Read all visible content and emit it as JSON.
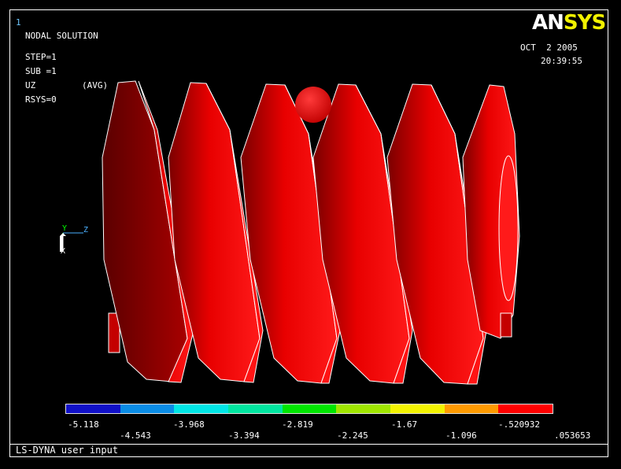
{
  "window_number": "1",
  "header": {
    "title": "NODAL SOLUTION",
    "step": "STEP=1",
    "sub": "SUB =1",
    "variable": "UZ",
    "avg": "(AVG)",
    "rsys": "RSYS=0"
  },
  "logo": {
    "an": "AN",
    "sys": "SYS"
  },
  "datetime": {
    "date": "OCT  2 2005",
    "time": "20:39:55"
  },
  "triad": {
    "y": "Y",
    "z": "Z",
    "x": "X"
  },
  "legend": {
    "colors": [
      "#1010c8",
      "#0a8ce6",
      "#00e6e6",
      "#00e6a0",
      "#00e600",
      "#a0e600",
      "#f2f200",
      "#ff9a00",
      "#ff0000"
    ],
    "top_labels": [
      "-5.118",
      "-3.968",
      "-2.819",
      "-1.67",
      "-.520932"
    ],
    "bottom_labels": [
      "-4.543",
      "-3.394",
      "-2.245",
      "-1.096",
      ".053653"
    ]
  },
  "footer": "LS-DYNA user input"
}
